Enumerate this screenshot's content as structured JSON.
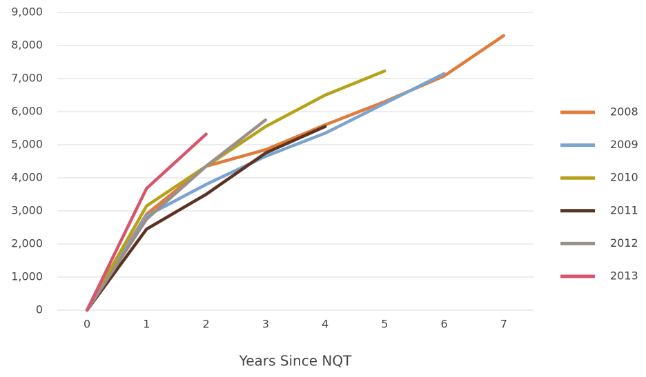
{
  "chart_data": {
    "type": "line",
    "x_label": "Years Since NQT",
    "x": [
      0,
      1,
      2,
      3,
      4,
      5,
      6,
      7
    ],
    "xlim": [
      -0.5,
      7.5
    ],
    "xticks": [
      0,
      1,
      2,
      3,
      4,
      5,
      6,
      7
    ],
    "ylim": [
      0,
      9000
    ],
    "yticks": [
      0,
      {
        "value": 1000,
        "label": "1,000"
      },
      {
        "value": 2000,
        "label": "2,000"
      },
      {
        "value": 3000,
        "label": "3,000"
      },
      {
        "value": 4000,
        "label": "4,000"
      },
      {
        "value": 5000,
        "label": "5,000"
      },
      {
        "value": 6000,
        "label": "6,000"
      },
      {
        "value": 7000,
        "label": "7,000"
      },
      {
        "value": 8000,
        "label": "8,000"
      },
      {
        "value": 9000,
        "label": "9,000"
      }
    ],
    "grid": true,
    "legend": "right",
    "series": [
      {
        "name": "2008",
        "color": "#e07b39",
        "values": [
          0,
          2900,
          4350,
          4850,
          5600,
          6300,
          7080,
          8300
        ]
      },
      {
        "name": "2009",
        "color": "#7ba3cf",
        "values": [
          0,
          2850,
          3800,
          4650,
          5350,
          6250,
          7150,
          null
        ]
      },
      {
        "name": "2010",
        "color": "#b5a21a",
        "values": [
          0,
          3150,
          4350,
          5550,
          6500,
          7230,
          null,
          null
        ]
      },
      {
        "name": "2011",
        "color": "#5b3322",
        "values": [
          0,
          2450,
          3500,
          4750,
          5550,
          null,
          null,
          null
        ]
      },
      {
        "name": "2012",
        "color": "#9a8f8a",
        "values": [
          0,
          2750,
          4350,
          5750,
          null,
          null,
          null,
          null
        ]
      },
      {
        "name": "2013",
        "color": "#d6556d",
        "values": [
          0,
          3680,
          5320,
          null,
          null,
          null,
          null,
          null
        ]
      }
    ]
  }
}
